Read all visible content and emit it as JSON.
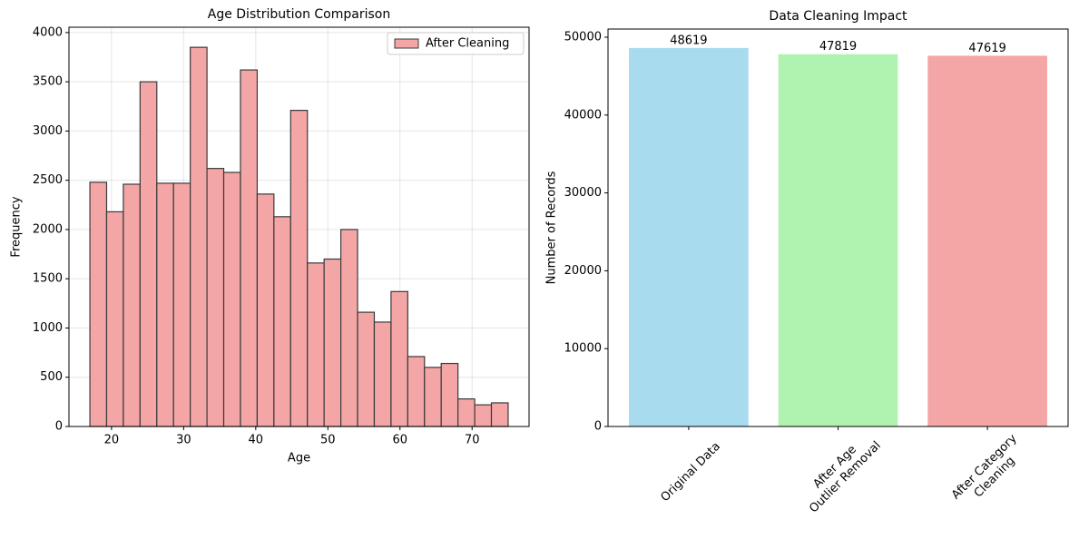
{
  "chart_data": [
    {
      "type": "histogram",
      "title": "Age Distribution Comparison",
      "x_label": "Age",
      "y_label": "Frequency",
      "bins": [
        17,
        19.32,
        21.64,
        23.96,
        26.28,
        28.6,
        30.92,
        33.24,
        35.56,
        37.88,
        40.2,
        42.52,
        44.84,
        47.16,
        49.48,
        51.8,
        54.12,
        56.44,
        58.76,
        61.08,
        63.4,
        65.72,
        68.04,
        70.36,
        72.68,
        75
      ],
      "series": [
        {
          "name": "After Cleaning",
          "color": "#f4a6a6",
          "values": [
            2480,
            2180,
            2460,
            3500,
            2470,
            2470,
            3850,
            2620,
            2580,
            3620,
            2360,
            2130,
            3210,
            1660,
            1700,
            2000,
            1160,
            1060,
            1370,
            710,
            600,
            640,
            280,
            220,
            240
          ]
        }
      ],
      "xlim": [
        14.1,
        77.9
      ],
      "xticks": [
        20,
        30,
        40,
        50,
        60,
        70
      ],
      "ylim": [
        0,
        4054
      ],
      "yticks": [
        0,
        500,
        1000,
        1500,
        2000,
        2500,
        3000,
        3500,
        4000
      ],
      "grid": true,
      "legend": "upper right"
    },
    {
      "type": "bar",
      "title": "Data Cleaning Impact",
      "y_label": "Number of Records",
      "categories": [
        "Original Data",
        "After Age\nOutlier Removal",
        "After Category\nCleaning"
      ],
      "values": [
        48619,
        47819,
        47619
      ],
      "colors": [
        "#a9dbef",
        "#b0f3b0",
        "#f4a6a6"
      ],
      "ylim": [
        0,
        51050
      ],
      "yticks": [
        0,
        10000,
        20000,
        30000,
        40000,
        50000
      ],
      "grid": false
    }
  ]
}
